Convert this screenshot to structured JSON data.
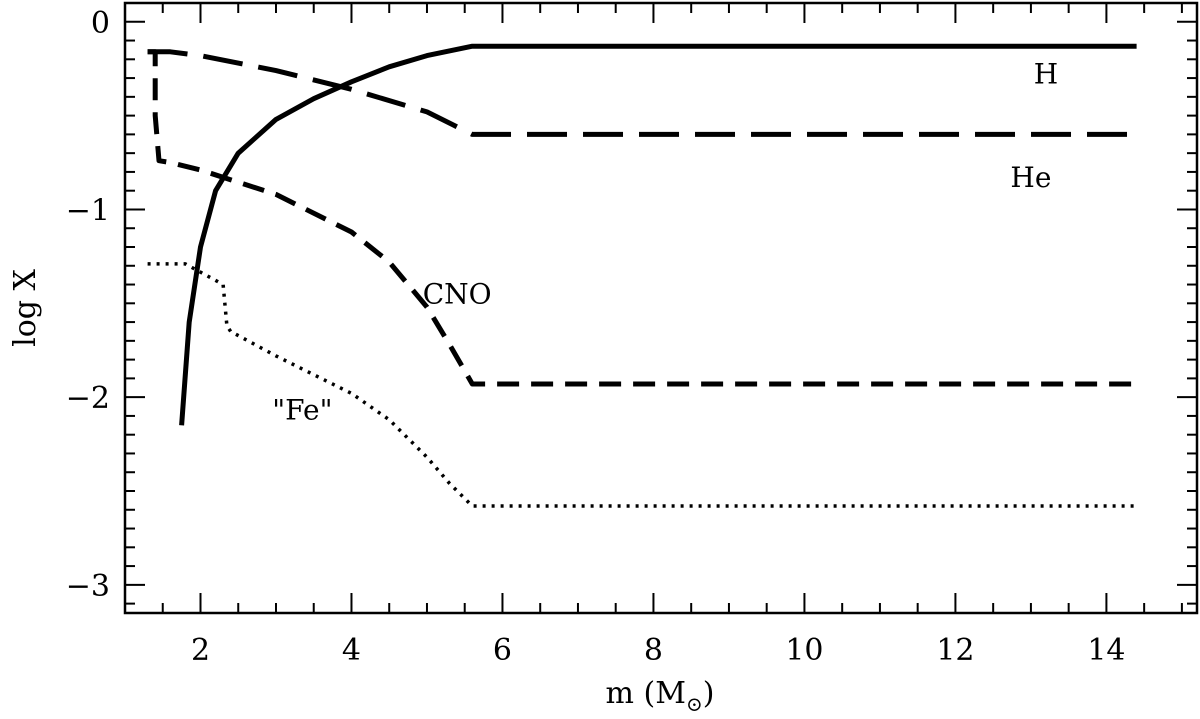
{
  "chart_data": {
    "type": "line",
    "xlabel": "m (M",
    "xlabel_subscript": "⊙",
    "xlabel_close": ")",
    "ylabel": "log X",
    "xlim": [
      1.0,
      15.2
    ],
    "ylim": [
      -3.15,
      0.1
    ],
    "x_ticks": [
      2,
      4,
      6,
      8,
      10,
      12,
      14
    ],
    "y_ticks": [
      0,
      -1,
      -2,
      -3
    ],
    "x_tick_labels": [
      "2",
      "4",
      "6",
      "8",
      "10",
      "12",
      "14"
    ],
    "y_tick_labels": [
      "0",
      "−1",
      "−2",
      "−3"
    ],
    "series": [
      {
        "name": "H",
        "style": "solid",
        "x": [
          1.75,
          1.85,
          2.0,
          2.2,
          2.5,
          3.0,
          3.5,
          4.0,
          4.5,
          5.0,
          5.6,
          14.4
        ],
        "y": [
          -2.15,
          -1.6,
          -1.2,
          -0.9,
          -0.7,
          -0.52,
          -0.41,
          -0.32,
          -0.24,
          -0.18,
          -0.13,
          -0.13
        ]
      },
      {
        "name": "He",
        "style": "long-dash",
        "x": [
          1.3,
          1.45,
          1.45,
          1.6,
          2.0,
          3.0,
          4.0,
          5.0,
          5.6,
          14.4
        ],
        "y": [
          -0.16,
          -0.16,
          -0.16,
          -0.16,
          -0.18,
          -0.26,
          -0.36,
          -0.48,
          -0.6,
          -0.6
        ]
      },
      {
        "name": "CNO",
        "style": "dash",
        "x": [
          1.3,
          1.4,
          1.4,
          1.45,
          1.6,
          2.0,
          3.0,
          4.0,
          4.5,
          5.0,
          5.3,
          5.6,
          14.4
        ],
        "y": [
          -0.16,
          -0.16,
          -0.5,
          -0.74,
          -0.75,
          -0.79,
          -0.92,
          -1.12,
          -1.28,
          -1.52,
          -1.72,
          -1.93,
          -1.93
        ]
      },
      {
        "name": "\"Fe\"",
        "style": "dot",
        "x": [
          1.3,
          1.8,
          2.3,
          2.35,
          2.4,
          3.0,
          4.0,
          4.5,
          5.0,
          5.3,
          5.6,
          14.4
        ],
        "y": [
          -1.29,
          -1.29,
          -1.4,
          -1.62,
          -1.65,
          -1.78,
          -1.98,
          -2.12,
          -2.32,
          -2.46,
          -2.58,
          -2.58
        ]
      }
    ],
    "annotations": [
      {
        "text": "H",
        "x": 13.2,
        "y": -0.33
      },
      {
        "text": "He",
        "x": 13.0,
        "y": -0.88
      },
      {
        "text": "CNO",
        "x": 5.4,
        "y": -1.5
      },
      {
        "text": "\"Fe\"",
        "x": 3.35,
        "y": -2.12
      }
    ],
    "grid": false
  }
}
